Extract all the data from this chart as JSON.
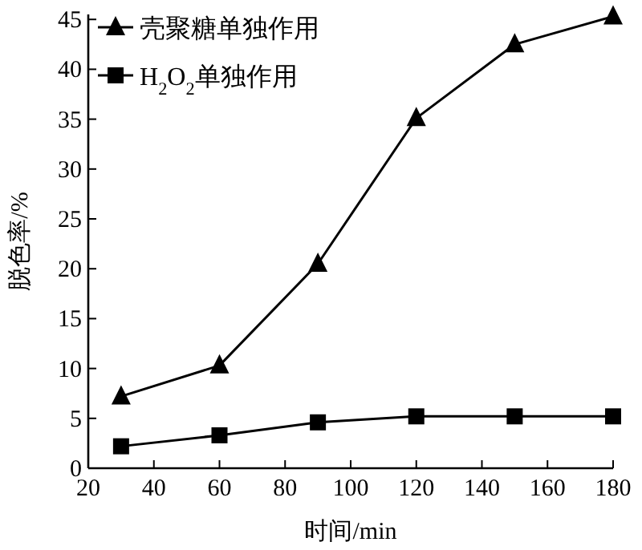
{
  "chart_data": {
    "type": "line",
    "xlabel": "时间/min",
    "ylabel": "脱色率/%",
    "x": [
      30,
      60,
      90,
      120,
      150,
      180
    ],
    "series": [
      {
        "name": "壳聚糖单独作用",
        "color": "#000000",
        "marker": "triangle",
        "values": [
          7.2,
          10.3,
          20.5,
          35.1,
          42.5,
          45.3
        ]
      },
      {
        "name": "H$_{2}$O$_{2}$单独作用",
        "color": "#000000",
        "marker": "square",
        "values": [
          2.2,
          3.3,
          4.6,
          5.2,
          5.2,
          5.2
        ]
      }
    ],
    "xlim": [
      20,
      180
    ],
    "xticks": [
      20,
      40,
      60,
      80,
      100,
      120,
      140,
      160,
      180
    ],
    "ylim": [
      0,
      45.5
    ],
    "yticks": [
      0,
      5,
      10,
      15,
      20,
      25,
      30,
      35,
      40,
      45
    ],
    "legend": "top left",
    "grid": false,
    "line_style": "solid"
  }
}
